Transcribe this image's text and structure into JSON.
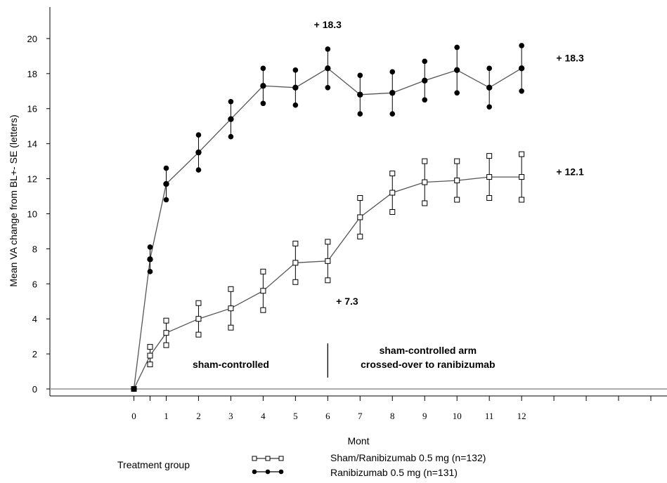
{
  "chart_data": {
    "type": "line",
    "xlabel": "Mont",
    "ylabel": "Mean VA change from BL+- SE (letters)",
    "xlim": [
      -2.6,
      16.5
    ],
    "ylim": [
      -0.4,
      21.8
    ],
    "x_ticks": [
      0,
      1,
      2,
      3,
      4,
      5,
      6,
      7,
      8,
      9,
      10,
      11,
      12
    ],
    "x_tick_marks": [
      0,
      0.5,
      1,
      2,
      3,
      4,
      5,
      6,
      7,
      8,
      9,
      10,
      11,
      12,
      13,
      14,
      15,
      16
    ],
    "y_ticks": [
      0,
      2,
      4,
      6,
      8,
      10,
      12,
      14,
      16,
      18,
      20
    ],
    "reference_line_y": 0,
    "grid": false,
    "period_divider_x": 6,
    "series": [
      {
        "name": "Sham/Ranibizumab 0.5 mg (n=132)",
        "marker": "open-square",
        "x": [
          0,
          0.5,
          1,
          2,
          3,
          4,
          5,
          6,
          7,
          8,
          9,
          10,
          11,
          12
        ],
        "y": [
          0,
          1.9,
          3.2,
          4.0,
          4.6,
          5.6,
          7.2,
          7.3,
          9.8,
          11.2,
          11.8,
          11.9,
          12.1,
          12.1
        ],
        "se": [
          0,
          0.5,
          0.7,
          0.9,
          1.1,
          1.1,
          1.1,
          1.1,
          1.1,
          1.1,
          1.2,
          1.1,
          1.2,
          1.3
        ]
      },
      {
        "name": "Ranibizumab 0.5 mg (n=131)",
        "marker": "filled-circle",
        "x": [
          0,
          0.5,
          1,
          2,
          3,
          4,
          5,
          6,
          7,
          8,
          9,
          10,
          11,
          12
        ],
        "y": [
          0,
          7.4,
          11.7,
          13.5,
          15.4,
          17.3,
          17.2,
          18.3,
          16.8,
          16.9,
          17.6,
          18.2,
          17.2,
          18.3
        ],
        "se": [
          0,
          0.7,
          0.9,
          1.0,
          1.0,
          1.0,
          1.0,
          1.1,
          1.1,
          1.2,
          1.1,
          1.3,
          1.1,
          1.3
        ]
      }
    ],
    "annotations": [
      {
        "text": "+ 18.3",
        "x": 6,
        "y": 20.6
      },
      {
        "text": "+ 18.3",
        "x": 13.5,
        "y": 18.7
      },
      {
        "text": "+ 12.1",
        "x": 13.5,
        "y": 12.2
      },
      {
        "text": "+ 7.3",
        "x": 6.6,
        "y": 4.8
      },
      {
        "text": "sham-controlled",
        "x": 3.0,
        "y": 1.2
      },
      {
        "text": "sham-controlled arm",
        "x": 9.1,
        "y": 2.0
      },
      {
        "text": "crossed-over to ranibizumab",
        "x": 9.1,
        "y": 1.2
      }
    ],
    "legend": {
      "title": "Treatment group",
      "placement": "bottom"
    }
  }
}
